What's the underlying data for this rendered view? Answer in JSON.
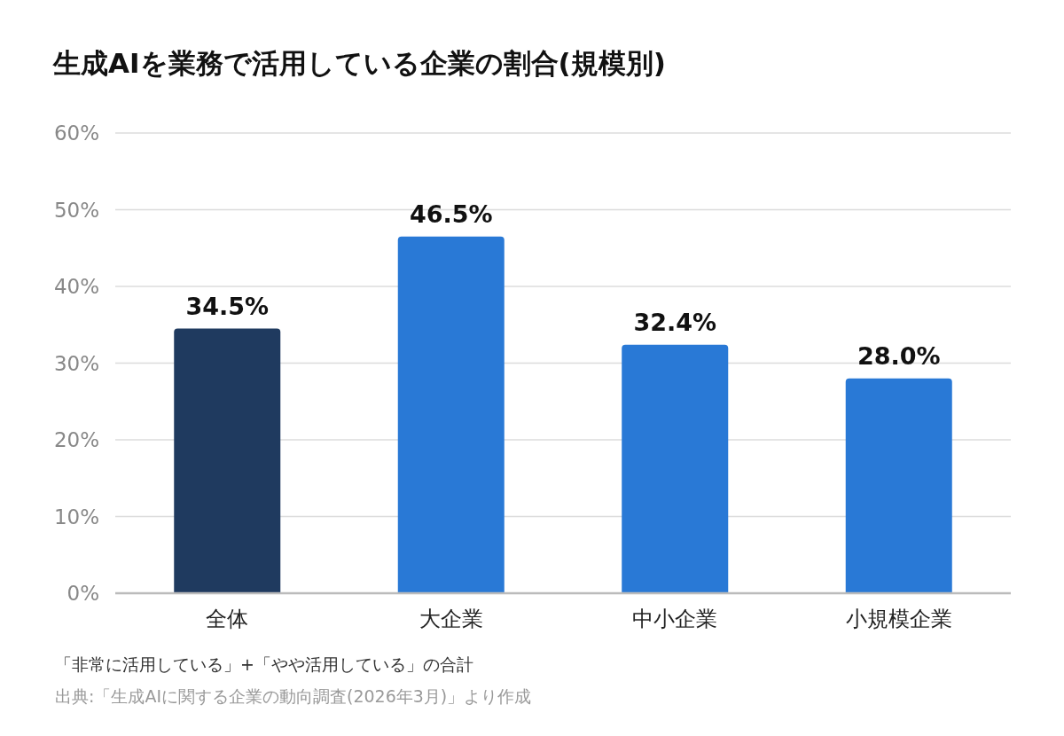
{
  "chart_data": {
    "type": "bar",
    "title": "生成AIを業務で活用している企業の割合(規模別)",
    "categories": [
      "全体",
      "大企業",
      "中小企業",
      "小規模企業"
    ],
    "values": [
      34.5,
      46.5,
      32.4,
      28.0
    ],
    "value_labels": [
      "34.5%",
      "46.5%",
      "32.4%",
      "28.0%"
    ],
    "colors": [
      "#1f3a5f",
      "#2979d6",
      "#2979d6",
      "#2979d6"
    ],
    "ylim": [
      0,
      60
    ],
    "yticks": [
      {
        "value": 0,
        "label": "0%"
      },
      {
        "value": 10,
        "label": "10%"
      },
      {
        "value": 20,
        "label": "20%"
      },
      {
        "value": 30,
        "label": "30%"
      },
      {
        "value": 40,
        "label": "40%"
      },
      {
        "value": 50,
        "label": "50%"
      },
      {
        "value": 60,
        "label": "60%"
      }
    ],
    "grid": "y",
    "annotations": [
      "「非常に活用している」+「やや活用している」の合計",
      "出典:「生成AIに関する企業の動向調査(2026年3月)」より作成"
    ]
  }
}
